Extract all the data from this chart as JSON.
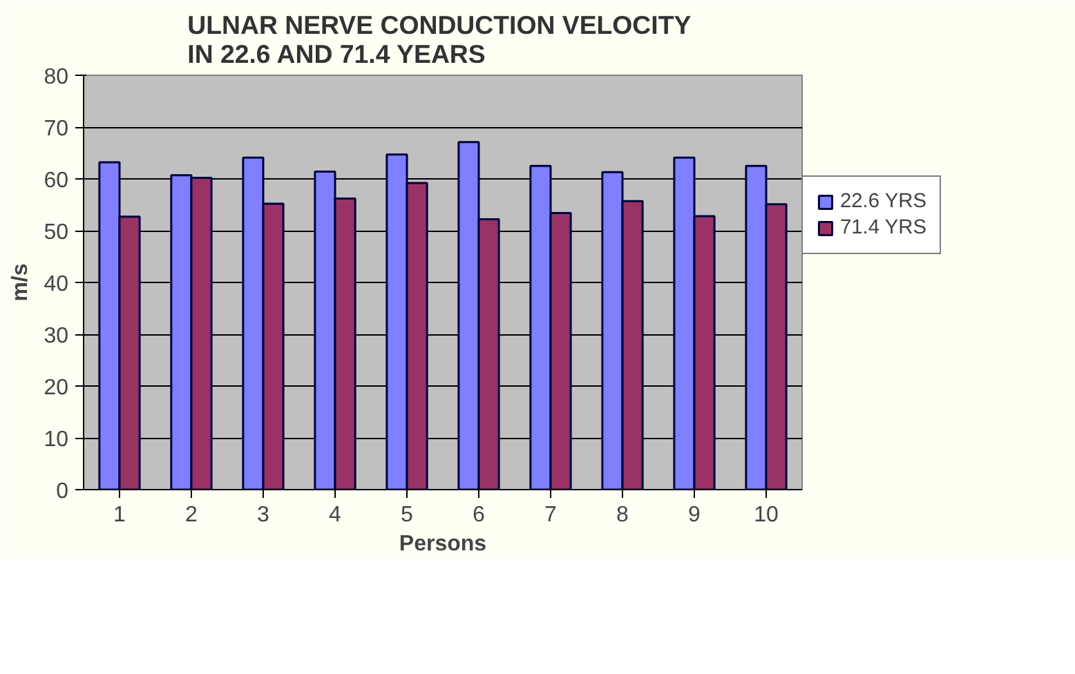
{
  "chart_data": {
    "type": "bar",
    "title": "ULNAR NERVE CONDUCTION  VELOCITY\nIN 22.6 AND 71.4 YEARS",
    "xlabel": "Persons",
    "ylabel": "m/s",
    "categories": [
      "1",
      "2",
      "3",
      "4",
      "5",
      "6",
      "7",
      "8",
      "9",
      "10"
    ],
    "series": [
      {
        "name": "22.6 YRS",
        "color": "#8080ff",
        "values": [
          63.2,
          60.7,
          64.1,
          61.4,
          64.7,
          67.1,
          62.5,
          61.3,
          64.1,
          62.5
        ]
      },
      {
        "name": "71.4 YRS",
        "color": "#993366",
        "values": [
          52.7,
          60.2,
          55.2,
          56.2,
          59.2,
          52.2,
          53.4,
          55.7,
          52.8,
          55.1
        ]
      }
    ],
    "ylim": [
      0,
      80
    ],
    "yticks": [
      0,
      10,
      20,
      30,
      40,
      50,
      60,
      70,
      80
    ],
    "grid": "y",
    "legend": "right"
  }
}
